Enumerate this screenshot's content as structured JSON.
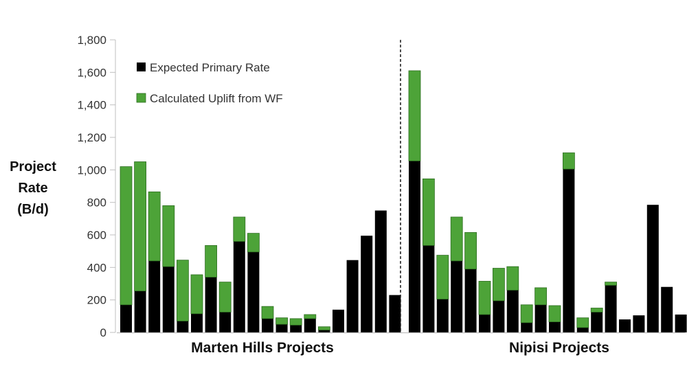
{
  "chart_data": {
    "type": "bar",
    "stacked": true,
    "ylabel_lines": [
      "Project",
      "Rate",
      "(B/d)"
    ],
    "ylim": [
      0,
      1800
    ],
    "yticks": [
      0,
      200,
      400,
      600,
      800,
      1000,
      1200,
      1400,
      1600,
      1800
    ],
    "ytick_labels": [
      "0",
      "200",
      "400",
      "600",
      "800",
      "1,000",
      "1,200",
      "1,400",
      "1,600",
      "1,800"
    ],
    "legend_position": "top-left",
    "grid": false,
    "series": [
      {
        "name": "Expected Primary Rate",
        "color": "#000000",
        "values": [
          170,
          255,
          440,
          405,
          70,
          115,
          340,
          125,
          560,
          495,
          85,
          50,
          45,
          85,
          15,
          140,
          445,
          595,
          750,
          230,
          1055,
          535,
          205,
          440,
          390,
          110,
          195,
          260,
          60,
          170,
          65,
          1005,
          30,
          125,
          290,
          80,
          105,
          785,
          280,
          110
        ]
      },
      {
        "name": "Calculated Uplift from WF",
        "color": "#4da338",
        "values": [
          850,
          795,
          425,
          375,
          375,
          240,
          195,
          185,
          150,
          115,
          75,
          40,
          40,
          25,
          20,
          0,
          0,
          0,
          0,
          0,
          555,
          410,
          270,
          270,
          225,
          205,
          200,
          145,
          110,
          105,
          100,
          100,
          60,
          25,
          20,
          0,
          0,
          0,
          0,
          0
        ]
      }
    ],
    "groups": [
      {
        "label": "Marten Hills Projects",
        "start": 0,
        "count": 20
      },
      {
        "label": "Nipisi Projects",
        "start": 20,
        "count": 20
      }
    ]
  }
}
